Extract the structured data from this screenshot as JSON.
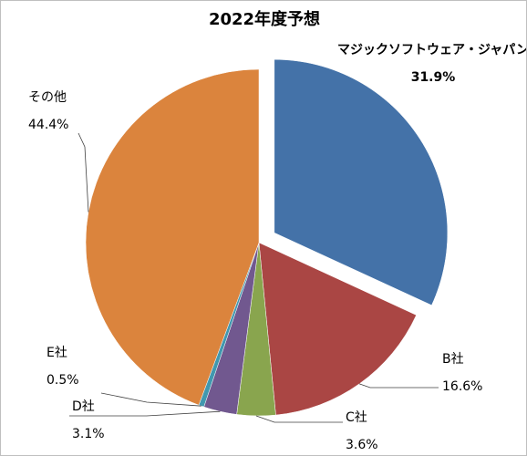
{
  "chart_data": {
    "type": "pie",
    "title": "2022年度予想",
    "categories": [
      "マジックソフトウェア・ジャパン",
      "B社",
      "C社",
      "D社",
      "E社",
      "その他"
    ],
    "values": [
      31.9,
      16.6,
      3.6,
      3.1,
      0.5,
      44.4
    ],
    "value_labels": [
      "31.9%",
      "16.6%",
      "3.6%",
      "3.1%",
      "0.5%",
      "44.4%"
    ],
    "colors": [
      "#4472a8",
      "#aa4644",
      "#89a54e",
      "#71588f",
      "#4198af",
      "#db843d"
    ],
    "exploded_slice": 0,
    "legend": "none"
  }
}
